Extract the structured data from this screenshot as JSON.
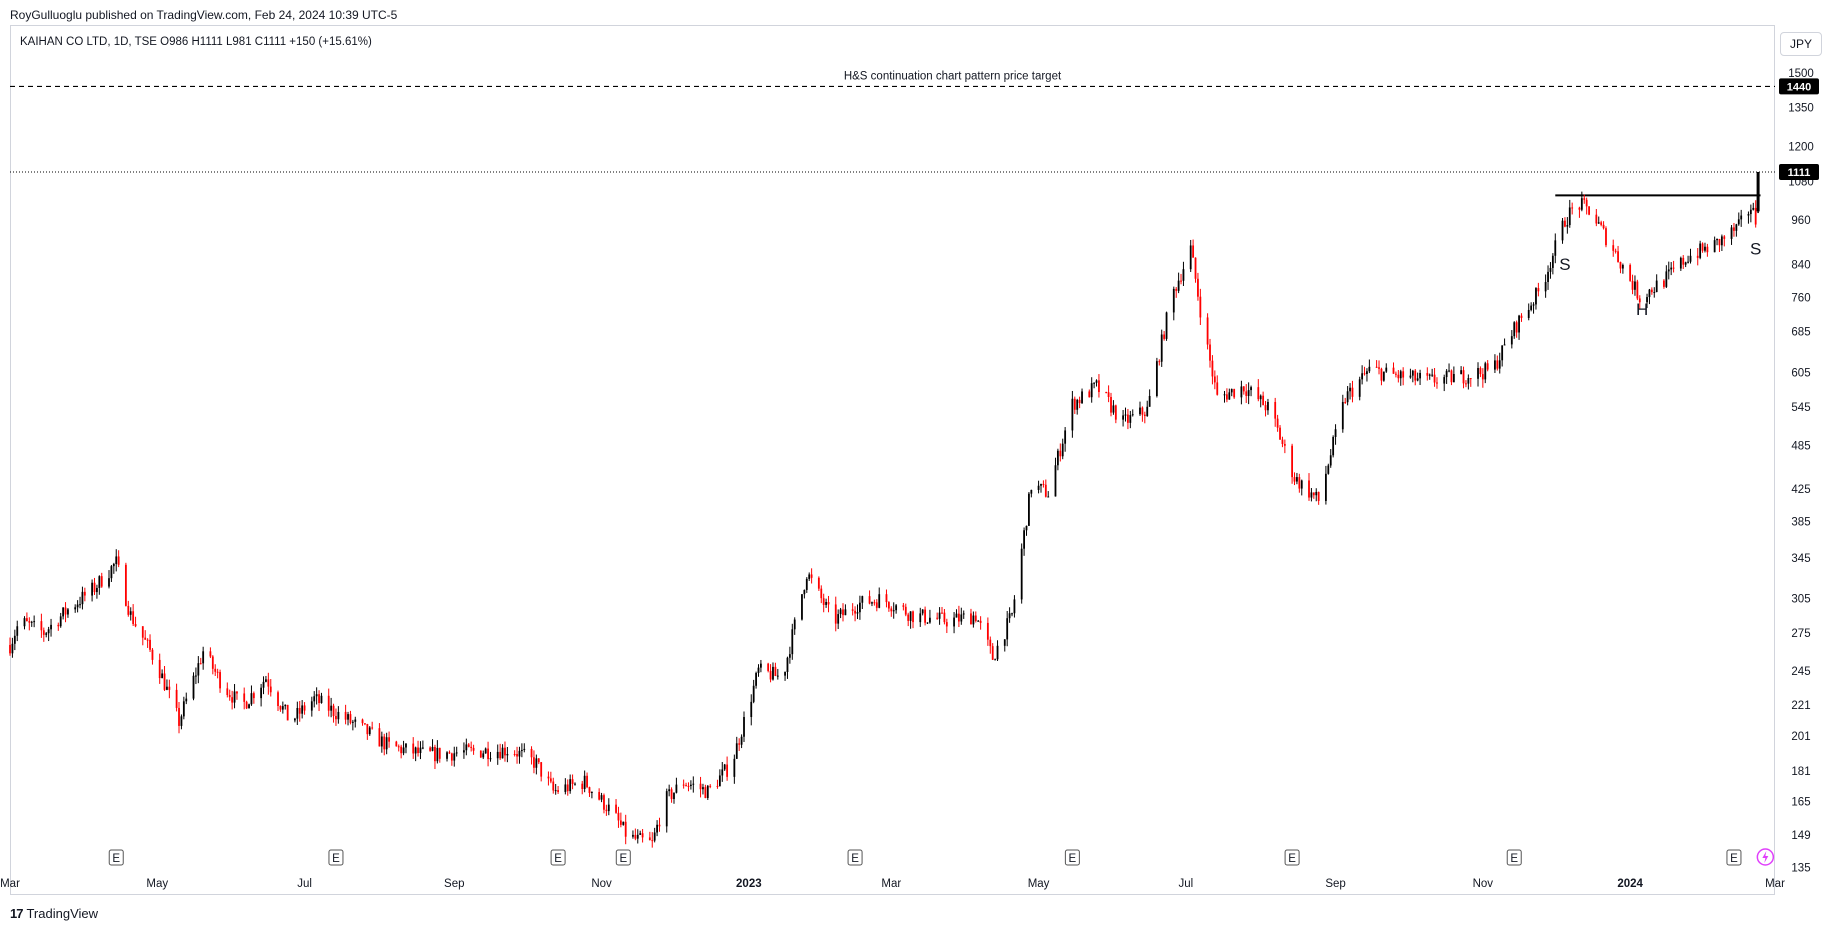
{
  "header": {
    "published_line": "RoyGulluoglu published on TradingView.com, Feb 24, 2024 10:39 UTC-5",
    "symbol_line": "KAIHAN CO LTD, 1D, TSE  O986  H1111  L981  C1111  +150 (+15.61%)",
    "currency": "JPY"
  },
  "footer": {
    "brand": "TradingView",
    "logo_icon": "tradingview-logo-icon"
  },
  "colors": {
    "up": "#000000",
    "down": "#ff0000",
    "axis_text": "#131722",
    "label_bg": "#000000",
    "event_badge_border": "#555555",
    "lightning": "#e040fb"
  },
  "chart_data": {
    "type": "candlestick",
    "title": "KAIHAN CO LTD, 1D, TSE",
    "ohlc_last": {
      "open": 986,
      "high": 1111,
      "low": 981,
      "close": 1111,
      "change": 150,
      "change_pct": 15.61
    },
    "y_scale": "log",
    "y_ticks": [
      135,
      149,
      165,
      181,
      201,
      221,
      245,
      275,
      305,
      345,
      385,
      425,
      485,
      545,
      605,
      685,
      760,
      840,
      960,
      1080,
      1200,
      1350,
      1500
    ],
    "ylim": [
      130,
      1560
    ],
    "x_ticks": [
      "Mar",
      "May",
      "Jul",
      "Sep",
      "Nov",
      "2023",
      "Mar",
      "May",
      "Jul",
      "Sep",
      "Nov",
      "2024",
      "Mar"
    ],
    "x_tick_dates": [
      "2022-03-01",
      "2022-05-01",
      "2022-07-01",
      "2022-09-01",
      "2022-11-01",
      "2023-01-01",
      "2023-03-01",
      "2023-05-01",
      "2023-07-01",
      "2023-09-01",
      "2023-11-01",
      "2024-01-01",
      "2024-03-01"
    ],
    "bold_x_ticks": [
      "2023",
      "2024"
    ],
    "xlim": [
      "2022-03-01",
      "2024-03-01"
    ],
    "price_labels": [
      {
        "value": 1440,
        "text": "1440"
      },
      {
        "value": 1111,
        "text": "1111"
      }
    ],
    "target_line": {
      "value": 1440,
      "label": "H&S continuation chart pattern price target"
    },
    "last_price_line": {
      "value": 1111
    },
    "neckline": {
      "value": 1035,
      "from": "2023-12-01",
      "to": "2024-02-24"
    },
    "pattern_labels": [
      {
        "text": "S",
        "date": "2023-12-05",
        "price": 825
      },
      {
        "text": "H",
        "date": "2024-01-06",
        "price": 720
      },
      {
        "text": "S",
        "date": "2024-02-22",
        "price": 865
      }
    ],
    "earnings_events": {
      "label": "E",
      "dates": [
        "2022-04-14",
        "2022-07-14",
        "2022-10-14",
        "2022-11-10",
        "2023-02-14",
        "2023-05-15",
        "2023-08-14",
        "2023-11-14",
        "2024-02-13"
      ]
    },
    "waypoints": [
      [
        "2022-03-01",
        265
      ],
      [
        "2022-03-05",
        285
      ],
      [
        "2022-03-15",
        275
      ],
      [
        "2022-03-25",
        295
      ],
      [
        "2022-04-05",
        315
      ],
      [
        "2022-04-14",
        340
      ],
      [
        "2022-04-20",
        290
      ],
      [
        "2022-05-01",
        250
      ],
      [
        "2022-05-10",
        210
      ],
      [
        "2022-05-20",
        260
      ],
      [
        "2022-05-28",
        235
      ],
      [
        "2022-06-05",
        220
      ],
      [
        "2022-06-15",
        240
      ],
      [
        "2022-06-25",
        210
      ],
      [
        "2022-07-05",
        225
      ],
      [
        "2022-07-20",
        210
      ],
      [
        "2022-08-05",
        195
      ],
      [
        "2022-08-20",
        190
      ],
      [
        "2022-09-10",
        192
      ],
      [
        "2022-09-25",
        193
      ],
      [
        "2022-10-05",
        185
      ],
      [
        "2022-10-12",
        170
      ],
      [
        "2022-10-25",
        175
      ],
      [
        "2022-11-05",
        160
      ],
      [
        "2022-11-12",
        148
      ],
      [
        "2022-11-22",
        145
      ],
      [
        "2022-11-27",
        165
      ],
      [
        "2022-12-05",
        175
      ],
      [
        "2022-12-15",
        170
      ],
      [
        "2022-12-25",
        185
      ],
      [
        "2023-01-05",
        245
      ],
      [
        "2023-01-15",
        240
      ],
      [
        "2023-01-25",
        330
      ],
      [
        "2023-02-05",
        285
      ],
      [
        "2023-02-15",
        300
      ],
      [
        "2023-02-25",
        305
      ],
      [
        "2023-03-10",
        290
      ],
      [
        "2023-03-25",
        285
      ],
      [
        "2023-04-05",
        290
      ],
      [
        "2023-04-12",
        255
      ],
      [
        "2023-04-20",
        290
      ],
      [
        "2023-04-28",
        430
      ],
      [
        "2023-05-05",
        420
      ],
      [
        "2023-05-15",
        550
      ],
      [
        "2023-05-25",
        580
      ],
      [
        "2023-06-05",
        520
      ],
      [
        "2023-06-15",
        540
      ],
      [
        "2023-06-25",
        760
      ],
      [
        "2023-07-03",
        880
      ],
      [
        "2023-07-08",
        700
      ],
      [
        "2023-07-14",
        560
      ],
      [
        "2023-07-25",
        580
      ],
      [
        "2023-08-05",
        540
      ],
      [
        "2023-08-15",
        440
      ],
      [
        "2023-08-25",
        410
      ],
      [
        "2023-09-05",
        560
      ],
      [
        "2023-09-15",
        610
      ],
      [
        "2023-09-25",
        600
      ],
      [
        "2023-10-10",
        590
      ],
      [
        "2023-10-25",
        600
      ],
      [
        "2023-11-05",
        610
      ],
      [
        "2023-11-15",
        700
      ],
      [
        "2023-11-25",
        780
      ],
      [
        "2023-12-05",
        960
      ],
      [
        "2023-12-10",
        1010
      ],
      [
        "2023-12-15",
        990
      ],
      [
        "2023-12-25",
        880
      ],
      [
        "2024-01-05",
        760
      ],
      [
        "2024-01-15",
        800
      ],
      [
        "2024-01-25",
        860
      ],
      [
        "2024-02-05",
        890
      ],
      [
        "2024-02-15",
        940
      ],
      [
        "2024-02-20",
        1000
      ],
      [
        "2024-02-22",
        961
      ]
    ]
  }
}
